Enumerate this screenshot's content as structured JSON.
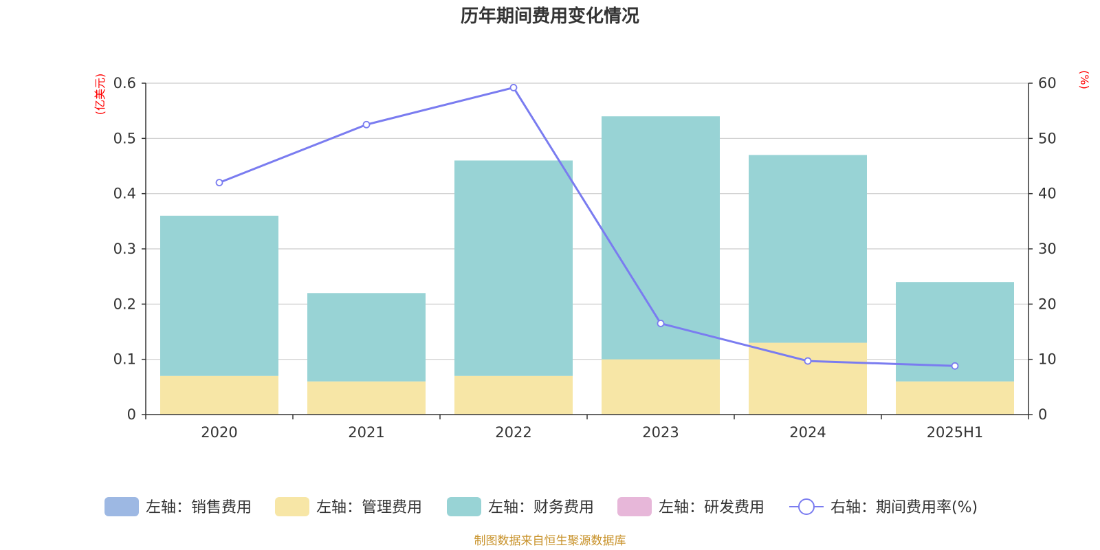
{
  "title": "历年期间费用变化情况",
  "left_unit": "(亿美元)",
  "right_unit": "(%)",
  "source": "制图数据来自恒生聚源数据库",
  "colors": {
    "sales": "#9db8e3",
    "admin": "#f7e6a6",
    "finance": "#98d3d5",
    "rnd": "#e7b7d9",
    "rate": "#7a7cf0",
    "grid": "#cccccc",
    "axis": "#333333"
  },
  "chart_data": {
    "type": "bar",
    "stacked": true,
    "categories": [
      "2020",
      "2021",
      "2022",
      "2023",
      "2024",
      "2025H1"
    ],
    "y_left": {
      "ticks": [
        "0",
        "0.1",
        "0.2",
        "0.3",
        "0.4",
        "0.5",
        "0.6"
      ],
      "range": [
        0,
        0.6
      ]
    },
    "y_right": {
      "ticks": [
        "0",
        "10",
        "20",
        "30",
        "40",
        "50",
        "60"
      ],
      "range": [
        0,
        60
      ]
    },
    "series": [
      {
        "name": "左轴：销售费用",
        "axis": "left",
        "type": "bar",
        "color_key": "sales",
        "values": [
          0,
          0,
          0,
          0,
          0,
          0
        ]
      },
      {
        "name": "左轴：管理费用",
        "axis": "left",
        "type": "bar",
        "color_key": "admin",
        "values": [
          0.07,
          0.06,
          0.07,
          0.1,
          0.13,
          0.06
        ]
      },
      {
        "name": "左轴：财务费用",
        "axis": "left",
        "type": "bar",
        "color_key": "finance",
        "values": [
          0.29,
          0.16,
          0.39,
          0.44,
          0.34,
          0.18
        ]
      },
      {
        "name": "左轴：研发费用",
        "axis": "left",
        "type": "bar",
        "color_key": "rnd",
        "values": [
          0,
          0,
          0,
          0,
          0,
          0
        ]
      },
      {
        "name": "右轴：期间费用率(%)",
        "axis": "right",
        "type": "line",
        "color_key": "rate",
        "values": [
          42.0,
          52.5,
          59.2,
          16.5,
          9.7,
          8.8
        ]
      }
    ],
    "grid": true,
    "legend_position": "bottom"
  }
}
